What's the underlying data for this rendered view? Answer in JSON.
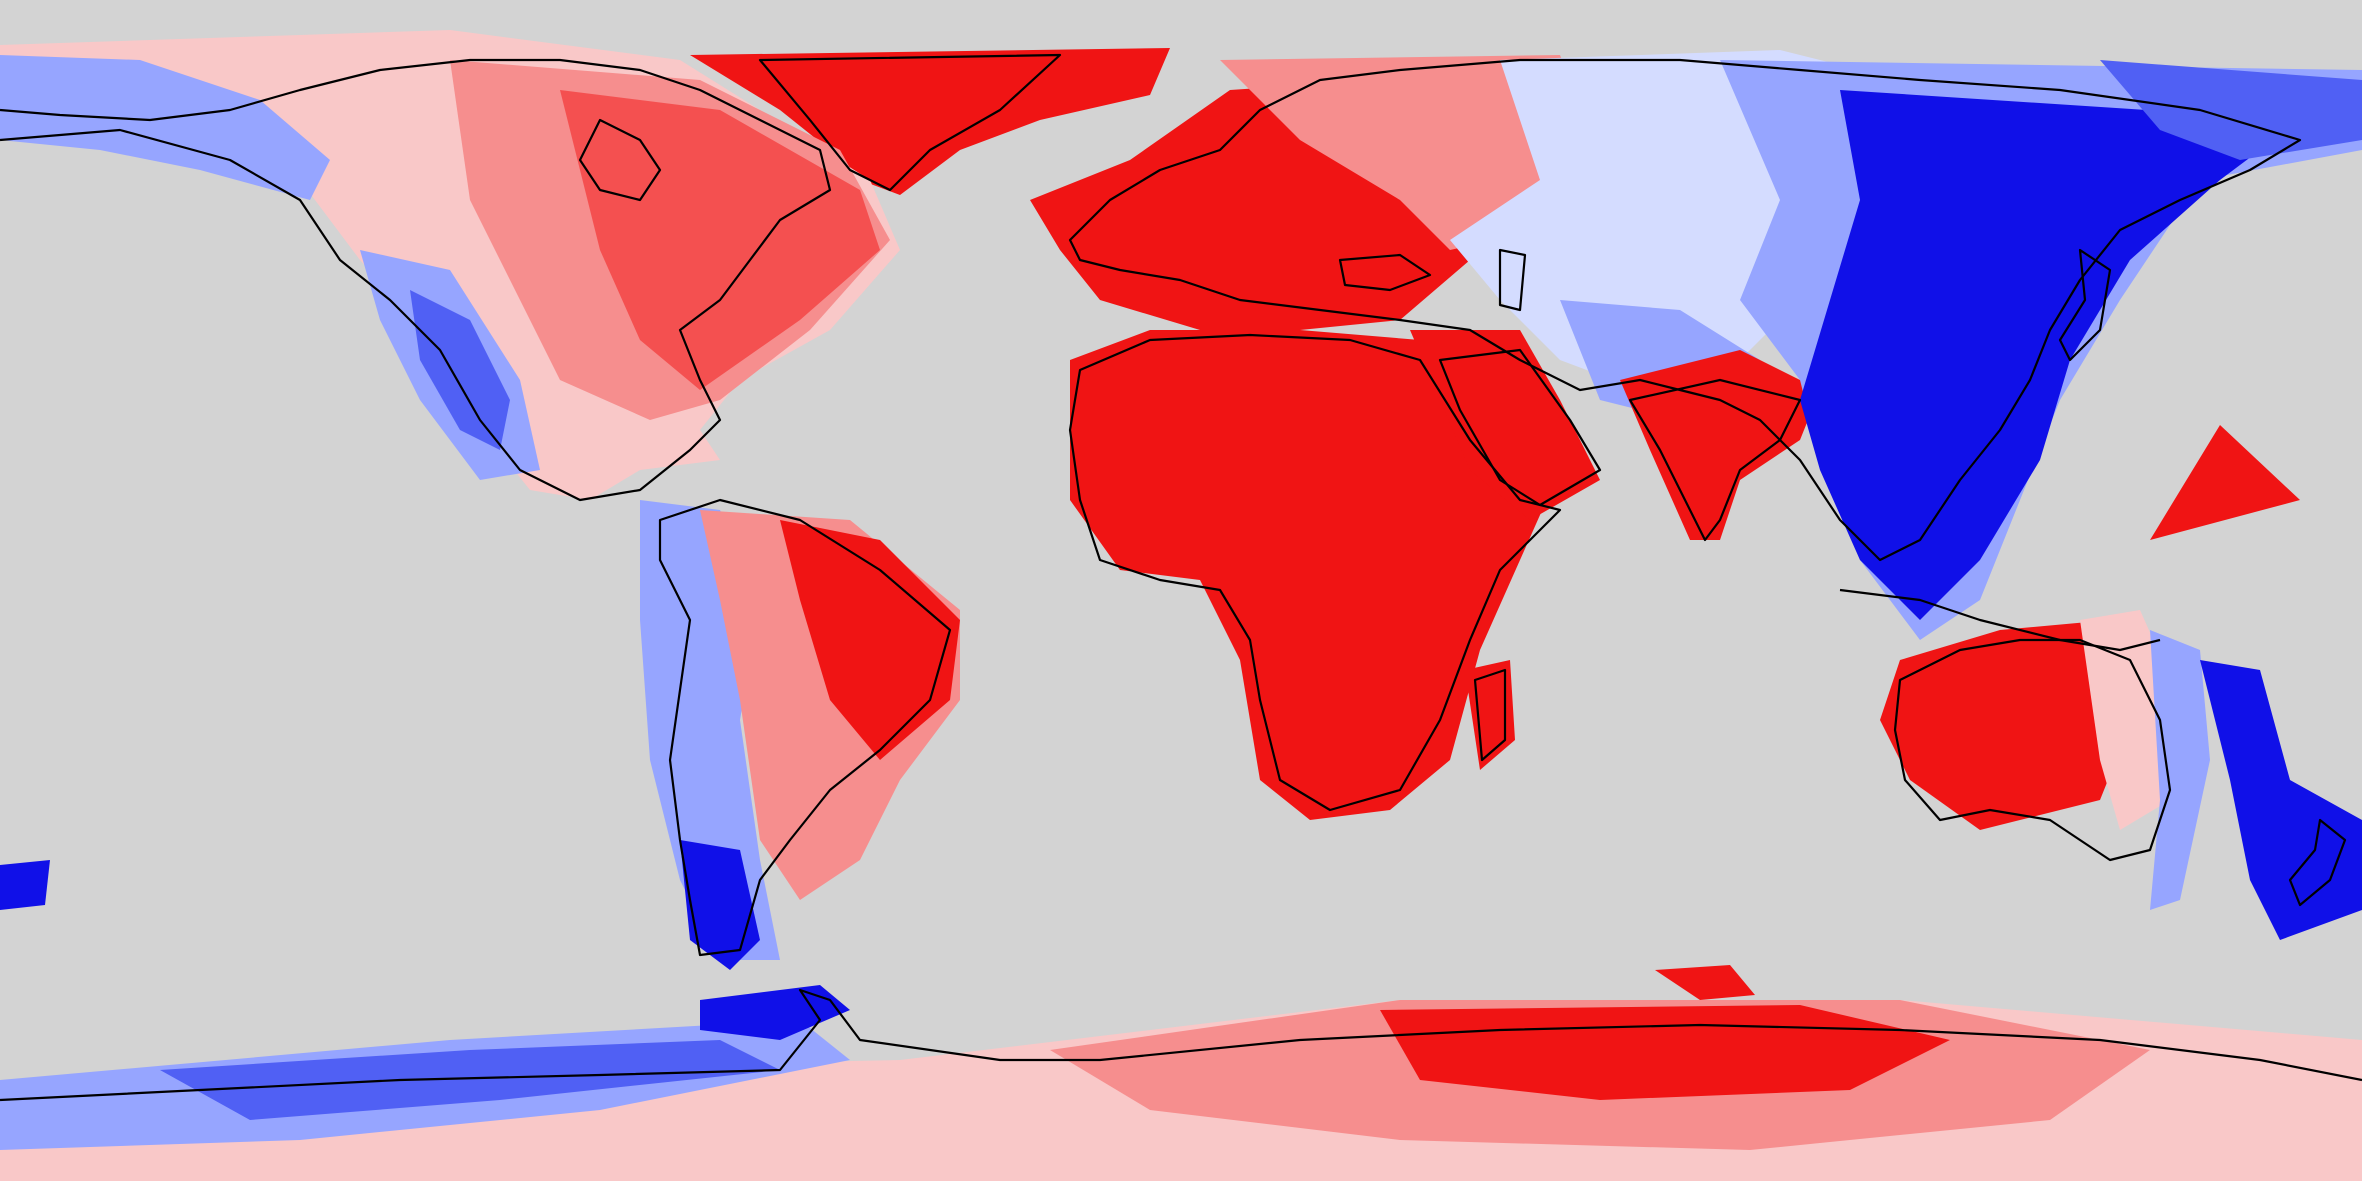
{
  "map": {
    "projection": "equirectangular",
    "extent": {
      "lon": [
        -180,
        180
      ],
      "lat": [
        -90,
        90
      ]
    },
    "background": "#d3d3d3",
    "coastline_color": "#000000",
    "palette": {
      "red_strong": "#f01414",
      "red_mid": "#f45050",
      "red_light": "#f68e8e",
      "red_pale": "#f9c8c8",
      "neutral": "#ffffff",
      "blue_pale": "#d4dcff",
      "blue_light": "#96a5ff",
      "blue_mid": "#5060f4",
      "blue_strong": "#1010e8"
    },
    "regions": [
      {
        "name": "north-america-west",
        "tone": "blue_mid"
      },
      {
        "name": "north-america-east",
        "tone": "red_light"
      },
      {
        "name": "greenland",
        "tone": "red_strong"
      },
      {
        "name": "south-america-east",
        "tone": "red_strong"
      },
      {
        "name": "south-america-west",
        "tone": "blue_light"
      },
      {
        "name": "europe",
        "tone": "red_strong"
      },
      {
        "name": "africa",
        "tone": "red_strong"
      },
      {
        "name": "arabia",
        "tone": "red_strong"
      },
      {
        "name": "india",
        "tone": "red_strong"
      },
      {
        "name": "central-asia",
        "tone": "blue_pale"
      },
      {
        "name": "east-asia",
        "tone": "blue_strong"
      },
      {
        "name": "australia-west",
        "tone": "red_strong"
      },
      {
        "name": "australia-east",
        "tone": "blue_light"
      },
      {
        "name": "new-zealand",
        "tone": "blue_strong"
      },
      {
        "name": "pacific-triangle",
        "tone": "red_strong"
      },
      {
        "name": "antarctica-east",
        "tone": "red_strong"
      },
      {
        "name": "antarctica-west",
        "tone": "blue_mid"
      }
    ]
  }
}
